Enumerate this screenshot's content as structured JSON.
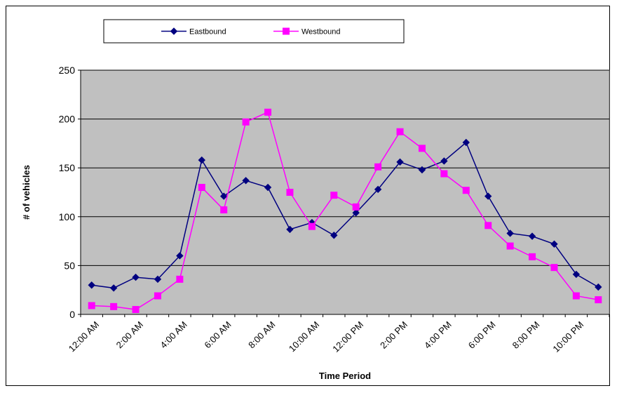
{
  "chart_data": {
    "type": "line",
    "title": "",
    "xlabel": "Time Period",
    "ylabel": "# of vehicles",
    "ylim": [
      0,
      250
    ],
    "yticks": [
      0,
      50,
      100,
      150,
      200,
      250
    ],
    "grid": "horizontal",
    "legend_position": "top",
    "plot_background": "#c0c0c0",
    "x": [
      "12:00 AM",
      "1:00 AM",
      "2:00 AM",
      "3:00 AM",
      "4:00 AM",
      "5:00 AM",
      "6:00 AM",
      "7:00 AM",
      "8:00 AM",
      "9:00 AM",
      "10:00 AM",
      "11:00 AM",
      "12:00 PM",
      "1:00 PM",
      "2:00 PM",
      "3:00 PM",
      "4:00 PM",
      "5:00 PM",
      "6:00 PM",
      "7:00 PM",
      "8:00 PM",
      "9:00 PM",
      "10:00 PM",
      "11:00 PM"
    ],
    "xtick_labels": [
      "12:00 AM",
      "",
      "2:00 AM",
      "",
      "4:00 AM",
      "",
      "6:00 AM",
      "",
      "8:00 AM",
      "",
      "10:00 AM",
      "",
      "12:00 PM",
      "",
      "2:00 PM",
      "",
      "4:00 PM",
      "",
      "6:00 PM",
      "",
      "8:00 PM",
      "",
      "10:00 PM",
      ""
    ],
    "series": [
      {
        "name": "Eastbound",
        "color": "#000080",
        "marker": "diamond",
        "values": [
          30,
          27,
          38,
          36,
          60,
          158,
          121,
          137,
          130,
          87,
          94,
          81,
          104,
          128,
          156,
          148,
          157,
          176,
          121,
          83,
          80,
          72,
          41,
          28
        ]
      },
      {
        "name": "Westbound",
        "color": "#ff00ff",
        "marker": "square",
        "values": [
          9,
          8,
          5,
          19,
          36,
          130,
          107,
          197,
          207,
          125,
          90,
          122,
          110,
          151,
          187,
          170,
          144,
          127,
          91,
          70,
          59,
          48,
          19,
          15
        ]
      }
    ]
  }
}
